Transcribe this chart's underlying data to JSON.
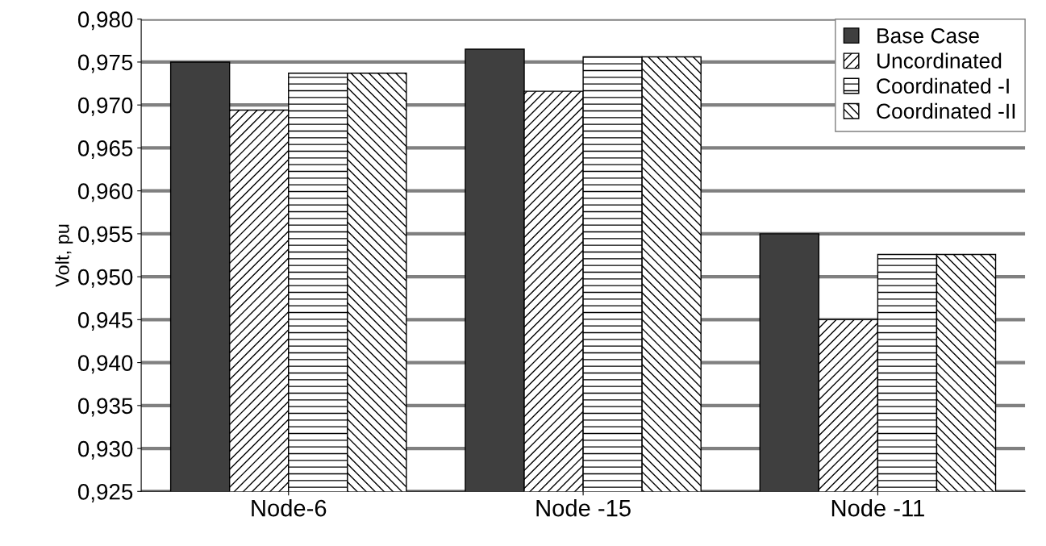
{
  "chart_data": {
    "type": "bar",
    "ylabel": "Volt, pu",
    "categories": [
      "Node-6",
      "Node -15",
      "Node -11"
    ],
    "series": [
      {
        "name": "Base Case",
        "color": "#3f3f3f",
        "values": [
          0.975,
          0.9765,
          0.955
        ]
      },
      {
        "name": "Uncordinated",
        "color": "#000000",
        "values": [
          0.9694,
          0.9716,
          0.945
        ]
      },
      {
        "name": "Coordinated -I",
        "color": "#000000",
        "values": [
          0.9737,
          0.9756,
          0.9526
        ]
      },
      {
        "name": "Coordinated -II",
        "color": "#000000",
        "values": [
          0.9737,
          0.9756,
          0.9526
        ]
      }
    ],
    "ylim": [
      0.925,
      0.98
    ],
    "yticks": [
      {
        "value": 0.925,
        "label": "0,925"
      },
      {
        "value": 0.93,
        "label": "0,930"
      },
      {
        "value": 0.935,
        "label": "0,935"
      },
      {
        "value": 0.94,
        "label": "0,940"
      },
      {
        "value": 0.945,
        "label": "0,945"
      },
      {
        "value": 0.95,
        "label": "0,950"
      },
      {
        "value": 0.955,
        "label": "0,955"
      },
      {
        "value": 0.96,
        "label": "0,960"
      },
      {
        "value": 0.965,
        "label": "0,965"
      },
      {
        "value": 0.97,
        "label": "0,970"
      },
      {
        "value": 0.975,
        "label": "0,975"
      },
      {
        "value": 0.98,
        "label": "0,980"
      }
    ],
    "grid": "y",
    "legend": "top right"
  }
}
